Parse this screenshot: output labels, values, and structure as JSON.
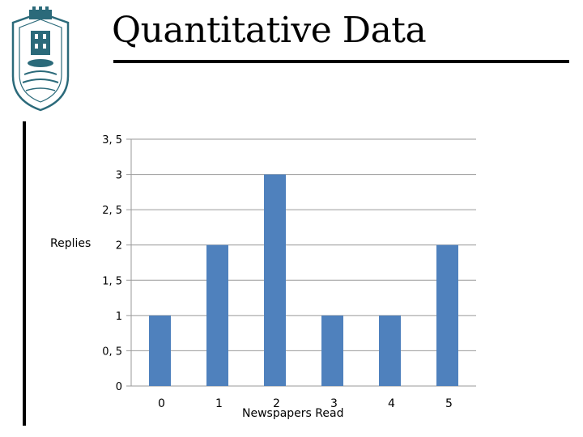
{
  "slide": {
    "title": "Quantitative Data",
    "logo_icon": "university-emblem-icon"
  },
  "chart_data": {
    "type": "bar",
    "title": "",
    "xlabel": "Newspapers Read",
    "ylabel": "Replies",
    "categories": [
      "0",
      "1",
      "2",
      "3",
      "4",
      "5"
    ],
    "values": [
      1,
      2,
      3,
      1,
      1,
      2
    ],
    "ylim": [
      0,
      3.5
    ],
    "yticks": [
      "0",
      "0, 5",
      "1",
      "1, 5",
      "2",
      "2, 5",
      "3",
      "3, 5"
    ],
    "grid": true,
    "legend": "none",
    "bar_color": "#4F81BD"
  }
}
